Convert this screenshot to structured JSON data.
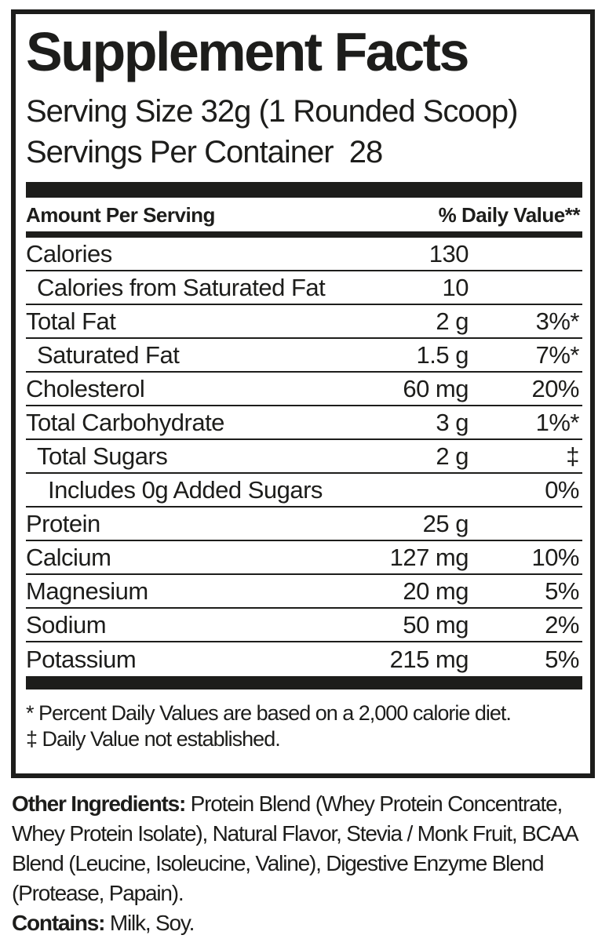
{
  "panel": {
    "title": "Supplement Facts",
    "serving_size": "Serving Size 32g (1 Rounded Scoop)",
    "servings_per_container": "Servings Per Container  28",
    "columns": {
      "amount_header": "Amount Per Serving",
      "dv_header": "% Daily Value**"
    },
    "rows": [
      {
        "label": "Calories",
        "indent": 0,
        "amount": "130",
        "dv": ""
      },
      {
        "label": "Calories from Saturated Fat",
        "indent": 1,
        "amount": "10",
        "dv": ""
      },
      {
        "label": "Total Fat",
        "indent": 0,
        "amount": "2 g",
        "dv": "3%*"
      },
      {
        "label": "Saturated Fat",
        "indent": 1,
        "amount": "1.5 g",
        "dv": "7%*"
      },
      {
        "label": "Cholesterol",
        "indent": 0,
        "amount": "60 mg",
        "dv": "20%"
      },
      {
        "label": "Total Carbohydrate",
        "indent": 0,
        "amount": "3 g",
        "dv": "1%*"
      },
      {
        "label": "Total Sugars",
        "indent": 1,
        "amount": "2 g",
        "dv": "‡"
      },
      {
        "label": "Includes 0g Added Sugars",
        "indent": 2,
        "amount": "",
        "dv": "0%"
      },
      {
        "label": "Protein",
        "indent": 0,
        "amount": "25 g",
        "dv": ""
      },
      {
        "label": "Calcium",
        "indent": 0,
        "amount": "127 mg",
        "dv": "10%"
      },
      {
        "label": "Magnesium",
        "indent": 0,
        "amount": "20 mg",
        "dv": "5%"
      },
      {
        "label": "Sodium",
        "indent": 0,
        "amount": "50 mg",
        "dv": "2%"
      },
      {
        "label": "Potassium",
        "indent": 0,
        "amount": "215 mg",
        "dv": "5%"
      }
    ],
    "footnotes": [
      "* Percent Daily Values are based on a 2,000 calorie diet.",
      "‡ Daily Value not established."
    ]
  },
  "other_ingredients": {
    "label": "Other Ingredients:",
    "text": " Protein Blend (Whey Protein Concentrate, Whey Protein Isolate), Natural Flavor, Stevia / Monk Fruit, BCAA Blend (Leucine, Isoleucine, Valine), Digestive Enzyme Blend (Protease, Papain)."
  },
  "contains": {
    "label": "Contains:",
    "text": " Milk, Soy."
  },
  "colors": {
    "ink": "#1d1d1b",
    "background": "#ffffff"
  }
}
